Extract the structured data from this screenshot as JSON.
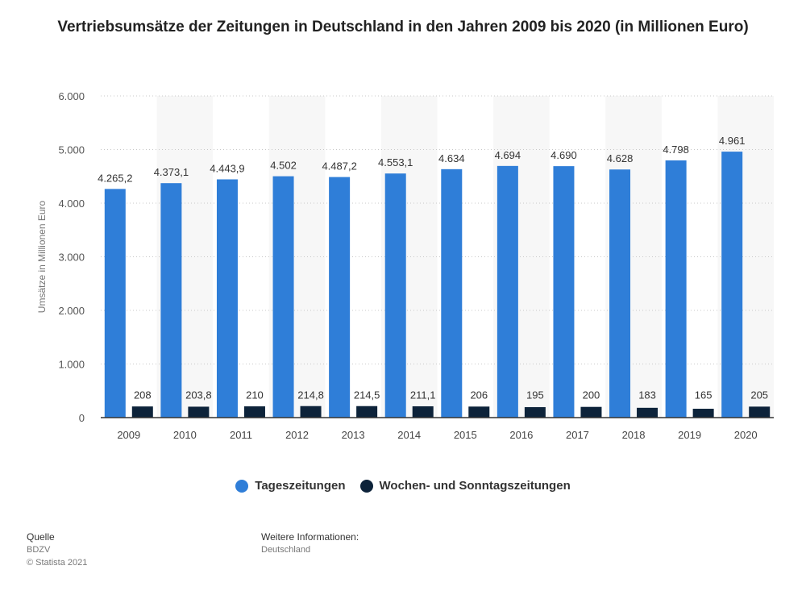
{
  "chart_data": {
    "type": "bar",
    "title": "Vertriebsumsätze der Zeitungen in Deutschland in den Jahren 2009 bis 2020 (in Millionen Euro)",
    "ylabel": "Umsätze in Millionen Euro",
    "xlabel": "",
    "ylim": [
      0,
      6000
    ],
    "yticks": [
      0,
      1000,
      2000,
      3000,
      4000,
      5000,
      6000
    ],
    "ytick_labels": [
      "0",
      "1.000",
      "2.000",
      "3.000",
      "4.000",
      "5.000",
      "6.000"
    ],
    "grid": true,
    "legend_position": "bottom-center",
    "categories": [
      "2009",
      "2010",
      "2011",
      "2012",
      "2013",
      "2014",
      "2015",
      "2016",
      "2017",
      "2018",
      "2019",
      "2020"
    ],
    "series": [
      {
        "name": "Tageszeitungen",
        "color": "#2f7ed8",
        "values": [
          4265.2,
          4373.1,
          4443.9,
          4502,
          4487.2,
          4553.1,
          4634,
          4694,
          4690,
          4628,
          4798,
          4961
        ],
        "labels": [
          "4.265,2",
          "4.373,1",
          "4.443,9",
          "4.502",
          "4.487,2",
          "4.553,1",
          "4.634",
          "4.694",
          "4.690",
          "4.628",
          "4.798",
          "4.961"
        ]
      },
      {
        "name": "Wochen- und Sonntagszeitungen",
        "color": "#0d233a",
        "values": [
          208,
          203.8,
          210,
          214.8,
          214.5,
          211.1,
          206,
          195,
          200,
          183,
          165,
          205
        ],
        "labels": [
          "208",
          "203,8",
          "210",
          "214,8",
          "214,5",
          "211,1",
          "206",
          "195",
          "200",
          "183",
          "165",
          "205"
        ]
      }
    ]
  },
  "footer": {
    "source_heading": "Quelle",
    "source_lines": [
      "BDZV",
      "© Statista 2021"
    ],
    "info_heading": "Weitere Informationen:",
    "info_lines": [
      "Deutschland"
    ]
  }
}
